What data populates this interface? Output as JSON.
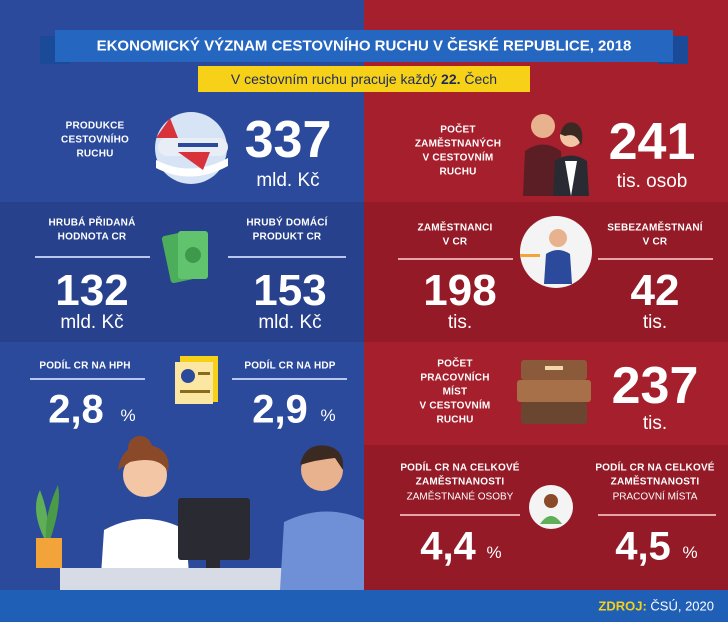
{
  "header": {
    "title": "EKONOMICKÝ VÝZNAM CESTOVNÍHO RUCHU V ČESKÉ REPUBLICE, 2018",
    "subtitle": {
      "text": "V cestovním ruchu pracuje každý",
      "number": "22.",
      "end": "Čech"
    }
  },
  "left": {
    "production": {
      "label": [
        "PRODUKCE",
        "CESTOVNÍHO",
        "RUCHU"
      ],
      "value": "337",
      "unit": "mld. Kč"
    },
    "gva": {
      "label": [
        "HRUBÁ PŘIDANÁ",
        "HODNOTA CR"
      ],
      "value": "132",
      "unit": "mld. Kč"
    },
    "gdp": {
      "label": [
        "HRUBÝ DOMÁCÍ",
        "PRODUKT CR"
      ],
      "value": "153",
      "unit": "mld. Kč"
    },
    "share_gva": {
      "label": "PODÍL CR NA HPH",
      "value": "2,8",
      "unit": "%"
    },
    "share_gdp": {
      "label": "PODÍL CR NA HDP",
      "value": "2,9",
      "unit": "%"
    }
  },
  "right": {
    "employed": {
      "label": [
        "POČET",
        "ZAMĚSTNANÝCH",
        "V CESTOVNÍM",
        "RUCHU"
      ],
      "value": "241",
      "unit": "tis. osob"
    },
    "employees": {
      "label": [
        "ZAMĚSTNANCI",
        "V CR"
      ],
      "value": "198",
      "unit": "tis."
    },
    "self_employed": {
      "label": [
        "SEBEZAMĚSTNANÍ",
        "V CR"
      ],
      "value": "42",
      "unit": "tis."
    },
    "jobs": {
      "label": [
        "POČET",
        "PRACOVNÍCH",
        "MÍST",
        "V CESTOVNÍM",
        "RUCHU"
      ],
      "value": "237",
      "unit": "tis."
    },
    "share_persons": {
      "label": [
        "PODÍL CR NA CELKOVÉ",
        "ZAMĚSTNANOSTI"
      ],
      "sub": "ZAMĚSTNANÉ OSOBY",
      "value": "4,4",
      "unit": "%"
    },
    "share_jobs": {
      "label": [
        "PODÍL CR NA CELKOVÉ",
        "ZAMĚSTNANOSTI"
      ],
      "sub": "PRACOVNÍ MÍSTA",
      "value": "4,5",
      "unit": "%"
    }
  },
  "footer": {
    "source_label": "ZDROJ:",
    "source": "ČSÚ, 2020"
  }
}
